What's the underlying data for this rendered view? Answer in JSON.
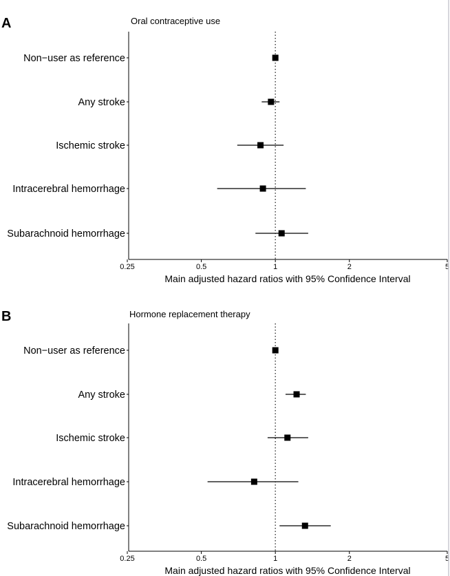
{
  "chart_data": [
    {
      "type": "scatter",
      "panel_label": "A",
      "title": "Oral contraceptive use",
      "xlabel": "Main adjusted hazard ratios with 95% Confidence Interval",
      "xscale": "log",
      "xlim": [
        0.25,
        5
      ],
      "xticks": [
        0.25,
        0.5,
        1,
        2,
        5
      ],
      "xtick_labels": [
        "0.25",
        "0.5",
        "1",
        "2",
        "5"
      ],
      "reference_line": 1,
      "categories": [
        "Non−user as reference",
        "Any stroke",
        "Ischemic stroke",
        "Intracerebral hemorrhage",
        "Subarachnoid hemorrhage"
      ],
      "estimates": [
        1.0,
        0.96,
        0.87,
        0.89,
        1.06
      ],
      "ci_lower": [
        null,
        0.88,
        0.7,
        0.58,
        0.83
      ],
      "ci_upper": [
        null,
        1.04,
        1.08,
        1.33,
        1.36
      ],
      "grid": false,
      "legend": "none"
    },
    {
      "type": "scatter",
      "panel_label": "B",
      "title": "Hormone replacement therapy",
      "xlabel": "Main adjusted hazard ratios with 95% Confidence Interval",
      "xscale": "log",
      "xlim": [
        0.25,
        5
      ],
      "xticks": [
        0.25,
        0.5,
        1,
        2,
        5
      ],
      "xtick_labels": [
        "0.25",
        "0.5",
        "1",
        "2",
        "5"
      ],
      "reference_line": 1,
      "categories": [
        "Non−user as reference",
        "Any stroke",
        "Ischemic stroke",
        "Intracerebral hemorrhage",
        "Subarachnoid hemorrhage"
      ],
      "estimates": [
        1.0,
        1.22,
        1.12,
        0.82,
        1.32
      ],
      "ci_lower": [
        null,
        1.1,
        0.93,
        0.53,
        1.04
      ],
      "ci_upper": [
        null,
        1.33,
        1.36,
        1.24,
        1.68
      ],
      "grid": false,
      "legend": "none"
    }
  ],
  "colors": {
    "marker": "#000000",
    "error_bar": "#000000",
    "axis": "#000000",
    "reference_line": "#333333"
  }
}
